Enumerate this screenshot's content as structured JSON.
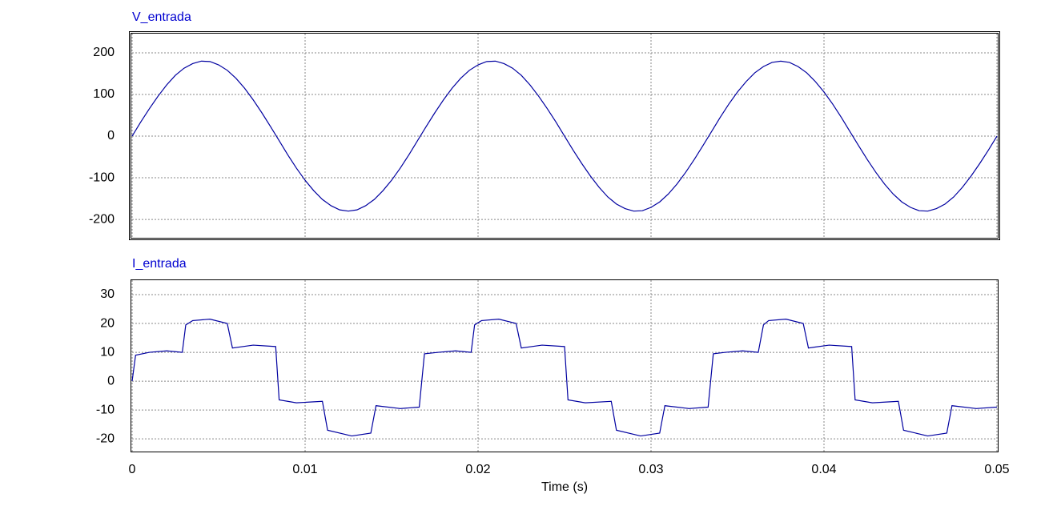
{
  "chart_data": [
    {
      "type": "line",
      "x": [
        0,
        0.0005,
        0.001,
        0.0015,
        0.002,
        0.0025,
        0.003,
        0.0035,
        0.004,
        0.0045,
        0.005,
        0.0055,
        0.006,
        0.0065,
        0.007,
        0.0075,
        0.008,
        0.0085,
        0.009,
        0.0095,
        0.01,
        0.0105,
        0.011,
        0.0115,
        0.012,
        0.0125,
        0.013,
        0.0135,
        0.014,
        0.0145,
        0.015,
        0.0155,
        0.016,
        0.0165,
        0.017,
        0.0175,
        0.018,
        0.0185,
        0.019,
        0.0195,
        0.02,
        0.0205,
        0.021,
        0.0215,
        0.022,
        0.0225,
        0.023,
        0.0235,
        0.024,
        0.0245,
        0.025,
        0.0255,
        0.026,
        0.0265,
        0.027,
        0.0275,
        0.028,
        0.0285,
        0.029,
        0.0295,
        0.03,
        0.0305,
        0.031,
        0.0315,
        0.032,
        0.0325,
        0.033,
        0.0335,
        0.034,
        0.0345,
        0.035,
        0.0355,
        0.036,
        0.0365,
        0.037,
        0.0375,
        0.038,
        0.0385,
        0.039,
        0.0395,
        0.04,
        0.0405,
        0.041,
        0.0415,
        0.042,
        0.0425,
        0.043,
        0.0435,
        0.044,
        0.0445,
        0.045,
        0.0455,
        0.046,
        0.0465,
        0.047,
        0.0475,
        0.048,
        0.0485,
        0.049,
        0.0495,
        0.05
      ],
      "series": [
        {
          "name": "V_entrada",
          "color": "#0000a0",
          "values": [
            0,
            34,
            66,
            96,
            123,
            146,
            163,
            174,
            180,
            179,
            171,
            158,
            139,
            115,
            87,
            56,
            23,
            -11,
            -45,
            -77,
            -106,
            -131,
            -152,
            -167,
            -177,
            -180,
            -177,
            -167,
            -152,
            -131,
            -106,
            -77,
            -45,
            -11,
            23,
            56,
            87,
            115,
            139,
            158,
            171,
            179,
            180,
            174,
            163,
            146,
            123,
            96,
            66,
            34,
            0,
            -34,
            -66,
            -96,
            -123,
            -146,
            -163,
            -174,
            -180,
            -179,
            -171,
            -158,
            -139,
            -115,
            -87,
            -56,
            -23,
            11,
            45,
            77,
            106,
            131,
            152,
            167,
            177,
            180,
            177,
            167,
            152,
            131,
            106,
            77,
            45,
            11,
            -23,
            -56,
            -87,
            -115,
            -139,
            -158,
            -171,
            -179,
            -180,
            -174,
            -163,
            -146,
            -123,
            -96,
            -66,
            -34,
            0
          ]
        }
      ],
      "xlim": [
        0,
        0.05
      ],
      "xticks": [
        0,
        0.01,
        0.02,
        0.03,
        0.04,
        0.05
      ],
      "ylim": [
        -244,
        246
      ],
      "yticks": [
        -200,
        -100,
        0,
        100,
        200
      ],
      "grid": true
    },
    {
      "type": "line",
      "x": [
        0,
        0.0002,
        0.001,
        0.002,
        0.0029,
        0.0031,
        0.0035,
        0.0045,
        0.0055,
        0.0058,
        0.007,
        0.0083,
        0.0085,
        0.0095,
        0.011,
        0.0113,
        0.0127,
        0.0138,
        0.0141,
        0.0155,
        0.0166,
        0.0169,
        0.0177,
        0.0187,
        0.0196,
        0.0198,
        0.0202,
        0.0212,
        0.0222,
        0.0225,
        0.0237,
        0.025,
        0.0252,
        0.0262,
        0.0277,
        0.028,
        0.0294,
        0.0305,
        0.0308,
        0.0322,
        0.0333,
        0.0336,
        0.0343,
        0.0353,
        0.0362,
        0.0365,
        0.0368,
        0.0378,
        0.0388,
        0.0391,
        0.0403,
        0.0416,
        0.0418,
        0.0428,
        0.0443,
        0.0446,
        0.046,
        0.0471,
        0.0474,
        0.0488,
        0.05
      ],
      "series": [
        {
          "name": "I_entrada",
          "color": "#0000a0",
          "values": [
            0,
            9,
            10,
            10.5,
            10,
            19.5,
            21,
            21.5,
            20,
            11.5,
            12.5,
            12,
            -6.5,
            -7.5,
            -7,
            -17,
            -19,
            -18,
            -8.5,
            -9.5,
            -9,
            9.5,
            10,
            10.5,
            10,
            19.5,
            21,
            21.5,
            20,
            11.5,
            12.5,
            12,
            -6.5,
            -7.5,
            -7,
            -17,
            -19,
            -18,
            -8.5,
            -9.5,
            -9,
            9.5,
            10,
            10.5,
            10,
            19.5,
            21,
            21.5,
            20,
            11.5,
            12.5,
            12,
            -6.5,
            -7.5,
            -7,
            -17,
            -19,
            -18,
            -8.5,
            -9.5,
            -9
          ]
        }
      ],
      "xlim": [
        0,
        0.05
      ],
      "xticks": [
        0,
        0.01,
        0.02,
        0.03,
        0.04,
        0.05
      ],
      "ylim": [
        -24.4,
        35
      ],
      "yticks": [
        -20,
        -10,
        0,
        10,
        20,
        30
      ],
      "grid": true,
      "xlabel": "Time (s)"
    }
  ]
}
